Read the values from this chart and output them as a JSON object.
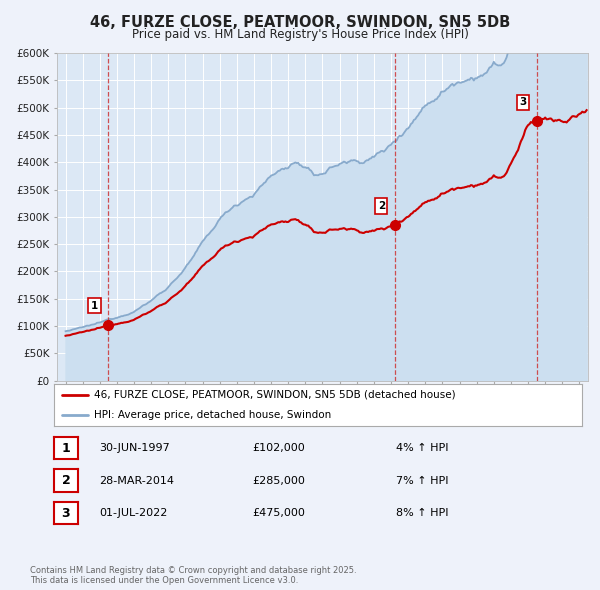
{
  "title": "46, FURZE CLOSE, PEATMOOR, SWINDON, SN5 5DB",
  "subtitle": "Price paid vs. HM Land Registry's House Price Index (HPI)",
  "title_color": "#222222",
  "bg_color": "#eef2fa",
  "plot_bg_color": "#dce8f5",
  "grid_color": "#ffffff",
  "ylim": [
    0,
    600000
  ],
  "yticks": [
    0,
    50000,
    100000,
    150000,
    200000,
    250000,
    300000,
    350000,
    400000,
    450000,
    500000,
    550000,
    600000
  ],
  "ytick_labels": [
    "£0",
    "£50K",
    "£100K",
    "£150K",
    "£200K",
    "£250K",
    "£300K",
    "£350K",
    "£400K",
    "£450K",
    "£500K",
    "£550K",
    "£600K"
  ],
  "sale_color": "#cc0000",
  "hpi_color": "#88aacc",
  "hpi_fill_color": "#ccdff0",
  "vline_color": "#cc3333",
  "sales": [
    {
      "date_num": 1997.5,
      "price": 102000,
      "label": "1"
    },
    {
      "date_num": 2014.23,
      "price": 285000,
      "label": "2"
    },
    {
      "date_num": 2022.5,
      "price": 475000,
      "label": "3"
    }
  ],
  "legend_entries": [
    {
      "label": "46, FURZE CLOSE, PEATMOOR, SWINDON, SN5 5DB (detached house)",
      "color": "#cc0000"
    },
    {
      "label": "HPI: Average price, detached house, Swindon",
      "color": "#88aacc"
    }
  ],
  "table_rows": [
    {
      "num": "1",
      "date": "30-JUN-1997",
      "price": "£102,000",
      "pct": "4% ↑ HPI"
    },
    {
      "num": "2",
      "date": "28-MAR-2014",
      "price": "£285,000",
      "pct": "7% ↑ HPI"
    },
    {
      "num": "3",
      "date": "01-JUL-2022",
      "price": "£475,000",
      "pct": "8% ↑ HPI"
    }
  ],
  "footnote": "Contains HM Land Registry data © Crown copyright and database right 2025.\nThis data is licensed under the Open Government Licence v3.0.",
  "xmin": 1994.5,
  "xmax": 2025.5,
  "xtick_start": 1995,
  "xtick_end": 2025
}
